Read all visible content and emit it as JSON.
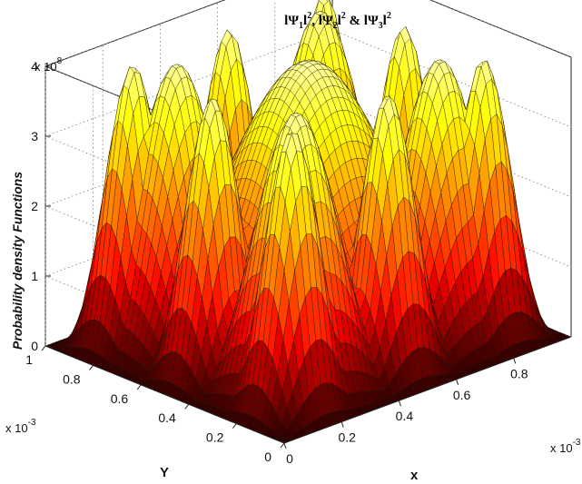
{
  "chart_data": {
    "type": "surface",
    "title": {
      "psi": "Ψ",
      "parts": [
        {
          "sub": "1",
          "sup": "2",
          "sep": ", "
        },
        {
          "sub": "2",
          "sup": "2",
          "sep": " & "
        },
        {
          "sub": "3",
          "sup": "2",
          "sep": ""
        }
      ],
      "bar": "l"
    },
    "xlabel": "x",
    "ylabel": "Y",
    "zlabel": "Probability density Functions",
    "x_ticks": [
      "0",
      "0.2",
      "0.4",
      "0.6",
      "0.8"
    ],
    "y_ticks": [
      "0",
      "0.2",
      "0.4",
      "0.6",
      "0.8",
      "1"
    ],
    "z_ticks": [
      "0",
      "1",
      "2",
      "3",
      "4"
    ],
    "x_exponent": "x 10",
    "x_exponent_power": "-3",
    "y_exponent": "x 10",
    "y_exponent_power": "-3",
    "z_exponent": "x 10",
    "z_exponent_power": "8",
    "xlim": [
      0,
      0.001
    ],
    "ylim": [
      0,
      0.001
    ],
    "zlim": [
      0,
      4
    ],
    "surfaces": [
      {
        "name": "|Ψ1|²",
        "nx": 1,
        "ny": 1
      },
      {
        "name": "|Ψ2|²",
        "nx": 2,
        "ny": 2
      },
      {
        "name": "|Ψ3|²",
        "nx": 3,
        "ny": 3
      }
    ],
    "peak_value": 4,
    "grid": true,
    "colormap": "hot"
  }
}
